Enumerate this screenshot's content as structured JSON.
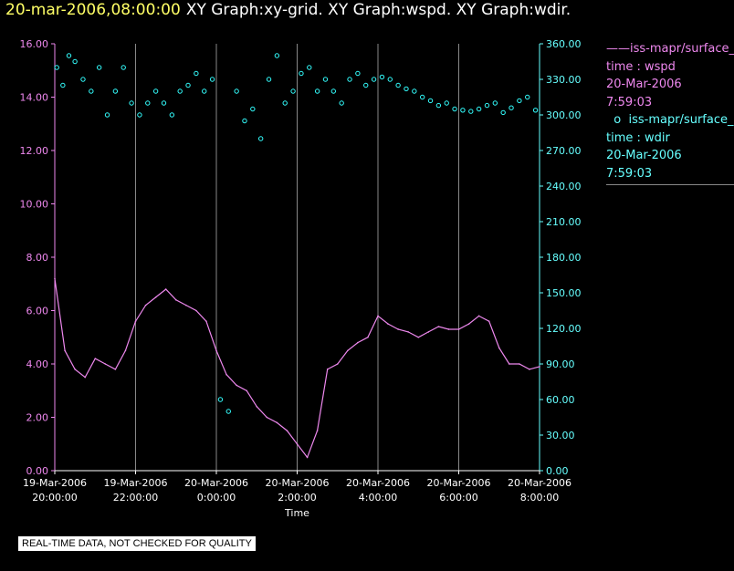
{
  "header": {
    "timestamp": "20-mar-2006,08:00:00",
    "graphs": "XY Graph:xy-grid.  XY Graph:wspd.  XY Graph:wdir."
  },
  "legend": {
    "series1_name": "iss-mapr/surface_r",
    "series1_line1": "time : wspd",
    "series1_line2": "20-Mar-2006",
    "series1_line3": "7:59:03",
    "series2_name": "iss-mapr/surface_r",
    "series2_line1": "time : wdir",
    "series2_line2": "20-Mar-2006",
    "series2_line3": "7:59:03"
  },
  "disclaimer": "REAL-TIME DATA, NOT CHECKED FOR QUALITY",
  "colors": {
    "wspd": "#ee88ee",
    "wdir": "#33ffff",
    "left_axis": "#ee88ee",
    "right_axis": "#66ffff",
    "grid": "#888888"
  },
  "chart_data": {
    "type": "line",
    "xlabel": "Time",
    "xlim": [
      0,
      12
    ],
    "x_units": "hours since 19-Mar-2006 20:00:00",
    "x_ticks": [
      {
        "x": 0,
        "date": "19-Mar-2006",
        "time": "20:00:00"
      },
      {
        "x": 2,
        "date": "19-Mar-2006",
        "time": "22:00:00"
      },
      {
        "x": 4,
        "date": "20-Mar-2006",
        "time": "0:00:00"
      },
      {
        "x": 6,
        "date": "20-Mar-2006",
        "time": "2:00:00"
      },
      {
        "x": 8,
        "date": "20-Mar-2006",
        "time": "4:00:00"
      },
      {
        "x": 10,
        "date": "20-Mar-2006",
        "time": "6:00:00"
      },
      {
        "x": 12,
        "date": "20-Mar-2006",
        "time": "8:00:00"
      }
    ],
    "left_axis": {
      "ylim": [
        0,
        16
      ],
      "ticks": [
        "0.00",
        "2.00",
        "4.00",
        "6.00",
        "8.00",
        "10.00",
        "12.00",
        "14.00",
        "16.00"
      ]
    },
    "right_axis": {
      "ylim": [
        0,
        360
      ],
      "ticks": [
        "0.00",
        "30.00",
        "60.00",
        "90.00",
        "120.00",
        "150.00",
        "180.00",
        "210.00",
        "240.00",
        "270.00",
        "300.00",
        "330.00",
        "360.00"
      ]
    },
    "series": [
      {
        "name": "wspd",
        "style": "line",
        "axis": "left",
        "x": [
          0,
          0.25,
          0.5,
          0.75,
          1,
          1.25,
          1.5,
          1.75,
          2,
          2.25,
          2.5,
          2.75,
          3,
          3.25,
          3.5,
          3.75,
          4,
          4.25,
          4.5,
          4.75,
          5,
          5.25,
          5.5,
          5.75,
          6,
          6.25,
          6.5,
          6.75,
          7,
          7.25,
          7.5,
          7.75,
          8,
          8.25,
          8.5,
          8.75,
          9,
          9.25,
          9.5,
          9.75,
          10,
          10.25,
          10.5,
          10.75,
          11,
          11.25,
          11.5,
          11.75,
          12
        ],
        "y": [
          7.2,
          4.5,
          3.8,
          3.5,
          4.2,
          4.0,
          3.8,
          4.5,
          5.6,
          6.2,
          6.5,
          6.8,
          6.4,
          6.2,
          6.0,
          5.6,
          4.5,
          3.6,
          3.2,
          3.0,
          2.4,
          2.0,
          1.8,
          1.5,
          1.0,
          0.5,
          1.5,
          3.8,
          4.0,
          4.5,
          4.8,
          5.0,
          5.8,
          5.5,
          5.3,
          5.2,
          5.0,
          5.2,
          5.4,
          5.3,
          5.3,
          5.5,
          5.8,
          5.6,
          4.6,
          4.0,
          4.0,
          3.8,
          3.9
        ]
      },
      {
        "name": "wdir",
        "style": "markers",
        "axis": "right",
        "x": [
          0.05,
          0.2,
          0.35,
          0.5,
          0.7,
          0.9,
          1.1,
          1.3,
          1.5,
          1.7,
          1.9,
          2.1,
          2.3,
          2.5,
          2.7,
          2.9,
          3.1,
          3.3,
          3.5,
          3.7,
          3.9,
          4.1,
          4.3,
          4.5,
          4.7,
          4.9,
          5.1,
          5.3,
          5.5,
          5.7,
          5.9,
          6.1,
          6.3,
          6.5,
          6.7,
          6.9,
          7.1,
          7.3,
          7.5,
          7.7,
          7.9,
          8.1,
          8.3,
          8.5,
          8.7,
          8.9,
          9.1,
          9.3,
          9.5,
          9.7,
          9.9,
          10.1,
          10.3,
          10.5,
          10.7,
          10.9,
          11.1,
          11.3,
          11.5,
          11.7,
          11.9
        ],
        "y": [
          340,
          325,
          350,
          345,
          330,
          320,
          340,
          300,
          320,
          340,
          310,
          300,
          310,
          320,
          310,
          300,
          320,
          325,
          335,
          320,
          330,
          60,
          50,
          320,
          295,
          305,
          280,
          330,
          350,
          310,
          320,
          335,
          340,
          320,
          330,
          320,
          310,
          330,
          335,
          325,
          330,
          332,
          330,
          325,
          322,
          320,
          315,
          312,
          308,
          310,
          305,
          304,
          303,
          305,
          308,
          310,
          302,
          306,
          312,
          315,
          304
        ]
      }
    ]
  }
}
